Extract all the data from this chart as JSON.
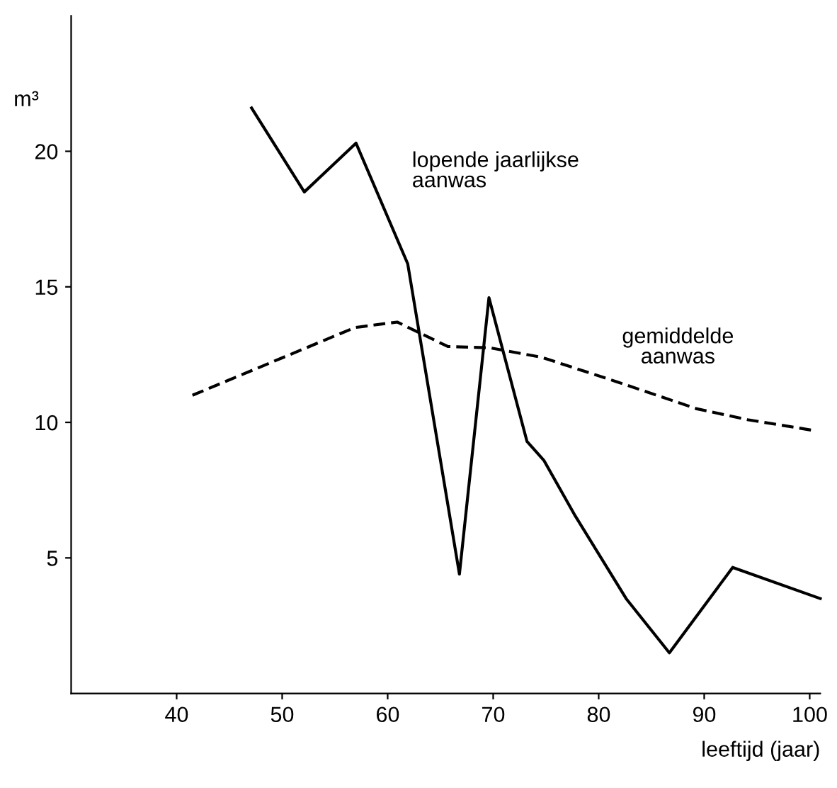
{
  "chart_data": {
    "type": "line",
    "ylabel": "m³",
    "xlabel": "leeftijd (jaar)",
    "xlim": [
      30,
      101
    ],
    "xticks": [
      40,
      50,
      60,
      70,
      80,
      90,
      100
    ],
    "ylim": [
      0,
      25
    ],
    "yticks": [
      5,
      10,
      15,
      20
    ],
    "grid": false,
    "legend": false,
    "series": [
      {
        "name": "lopende jaarlijkse\naanwas",
        "color": "#000000",
        "line_style": "solid",
        "x": [
          47.1,
          52.1,
          57.0,
          61.9,
          66.8,
          69.6,
          73.2,
          74.8,
          77.7,
          82.6,
          86.7,
          92.7,
          101
        ],
        "values": [
          21.6,
          18.5,
          20.3,
          15.85,
          4.4,
          14.6,
          9.3,
          8.6,
          6.6,
          3.5,
          1.5,
          4.65,
          3.5
        ]
      },
      {
        "name": "gemiddelde\naanwas",
        "color": "#000000",
        "line_style": "dashed",
        "x": [
          41.5,
          56.9,
          60.9,
          65.7,
          69.7,
          74.6,
          81.7,
          89.3,
          94.1,
          100.4
        ],
        "values": [
          11.0,
          13.5,
          13.7,
          12.8,
          12.75,
          12.4,
          11.5,
          10.5,
          10.1,
          9.7
        ]
      }
    ]
  }
}
